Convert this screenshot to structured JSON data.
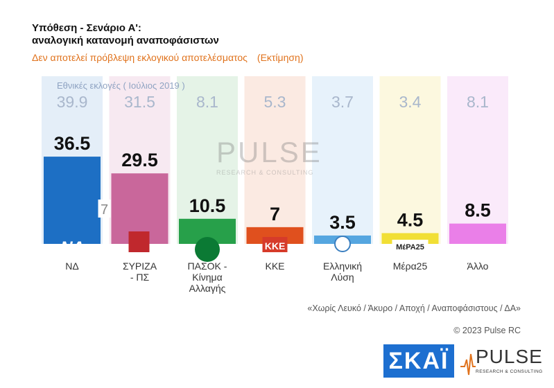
{
  "header": {
    "title_line1": "Υπόθεση - Σενάριο Α':",
    "title_line2": "αναλογική κατανομή αναποφάσιστων",
    "subtitle": "Δεν αποτελεί πρόβλεψη εκλογικού αποτελέσματος",
    "subtitle_tag": "(Εκτίμηση)"
  },
  "legend_note": "Εθνικές εκλογές  ( Ιούλιος 2019 )",
  "chart_data": {
    "type": "bar",
    "title": "Υπόθεση - Σενάριο Α': αναλογική κατανομή αναποφάσιστων",
    "categories": [
      "ΝΔ",
      "ΣΥΡΙΖΑ - ΠΣ",
      "ΠΑΣΟΚ - Κίνημα Αλλαγής",
      "ΚΚΕ",
      "Ελληνική Λύση",
      "Μέρα25",
      "Άλλο"
    ],
    "category_lines": [
      [
        "ΝΔ"
      ],
      [
        "ΣΥΡΙΖΑ",
        "- ΠΣ"
      ],
      [
        "ΠΑΣΟΚ -",
        "Κίνημα",
        "Αλλαγής"
      ],
      [
        "ΚΚΕ"
      ],
      [
        "Ελληνική",
        "Λύση"
      ],
      [
        "Μέρα25"
      ],
      [
        "Άλλο"
      ]
    ],
    "series": [
      {
        "name": "Εκτίμηση",
        "values": [
          36.5,
          29.5,
          10.5,
          7,
          3.5,
          4.5,
          8.5
        ],
        "labels": [
          "36.5",
          "29.5",
          "10.5",
          "7",
          "3.5",
          "4.5",
          "8.5"
        ]
      },
      {
        "name": "Εθνικές εκλογές (Ιούλιος 2019)",
        "values": [
          39.9,
          31.5,
          8.1,
          5.3,
          3.7,
          3.4,
          8.1
        ],
        "labels": [
          "39.9",
          "31.5",
          "8.1",
          "5.3",
          "3.7",
          "3.4",
          "8.1"
        ]
      }
    ],
    "gap_annotation": {
      "category": "ΣΥΡΙΖΑ - ΠΣ",
      "text": "7"
    },
    "colors": [
      "#1d6fc4",
      "#c9679b",
      "#27a04a",
      "#e0501e",
      "#55a6e0",
      "#f1df35",
      "#ea7fe8"
    ],
    "column_bg": [
      "#e4eef8",
      "#f7e9f1",
      "#e5f3e7",
      "#fbeae2",
      "#e7f2fb",
      "#fcf8df",
      "#faeafa"
    ],
    "ylim": [
      0,
      42
    ]
  },
  "party_logos": [
    "ΝΔ",
    "",
    "",
    "ΚΚΕ",
    "",
    "ΜέΡΑ25",
    ""
  ],
  "watermark": {
    "word": "PULSE",
    "tag": "RESEARCH & CONSULTING"
  },
  "footer": {
    "note": "«Χωρίς Λευκό / Άκυρο / Αποχή / Αναποφάσιστους / ΔΑ»",
    "copyright": "© 2023 Pulse RC",
    "skai_logo": "ΣΚΑΪ",
    "pulse_word": "PULSE",
    "pulse_tag": "RESEARCH & CONSULTING"
  }
}
